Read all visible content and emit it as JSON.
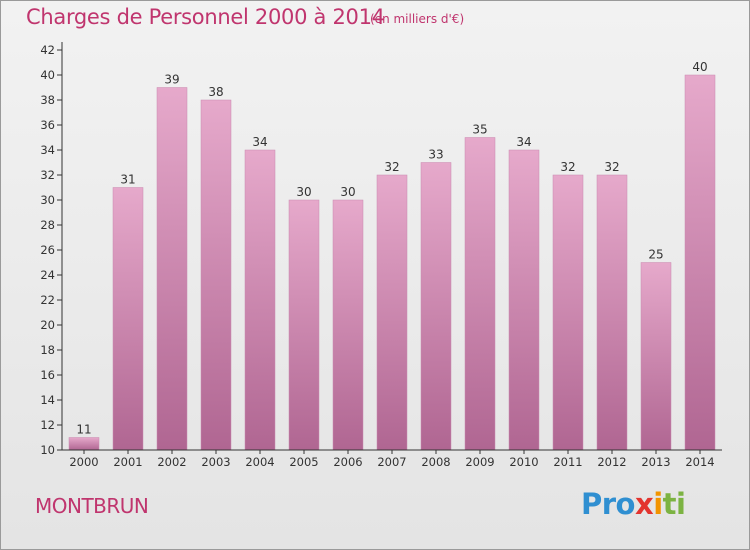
{
  "chart_data": {
    "type": "bar",
    "title": "Charges de Personnel 2000 à 2014",
    "subtitle": "(en milliers d'€)",
    "categories": [
      "2000",
      "2001",
      "2002",
      "2003",
      "2004",
      "2005",
      "2006",
      "2007",
      "2008",
      "2009",
      "2010",
      "2011",
      "2012",
      "2013",
      "2014"
    ],
    "values": [
      11,
      31,
      39,
      38,
      34,
      30,
      30,
      32,
      33,
      35,
      34,
      32,
      32,
      25,
      40
    ],
    "ylim": [
      10,
      42
    ],
    "yticks": [
      10,
      12,
      14,
      16,
      18,
      20,
      22,
      24,
      26,
      28,
      30,
      32,
      34,
      36,
      38,
      40,
      42
    ],
    "grid": false,
    "bar_color": "#e0a2c4",
    "bar_color_dark": "#b56a96"
  },
  "place": "MONTBRUN",
  "logo": {
    "p1": "Pro",
    "p2": "x",
    "p3": "i",
    "p4": "ti"
  },
  "colors": {
    "title": "#c0356e"
  }
}
